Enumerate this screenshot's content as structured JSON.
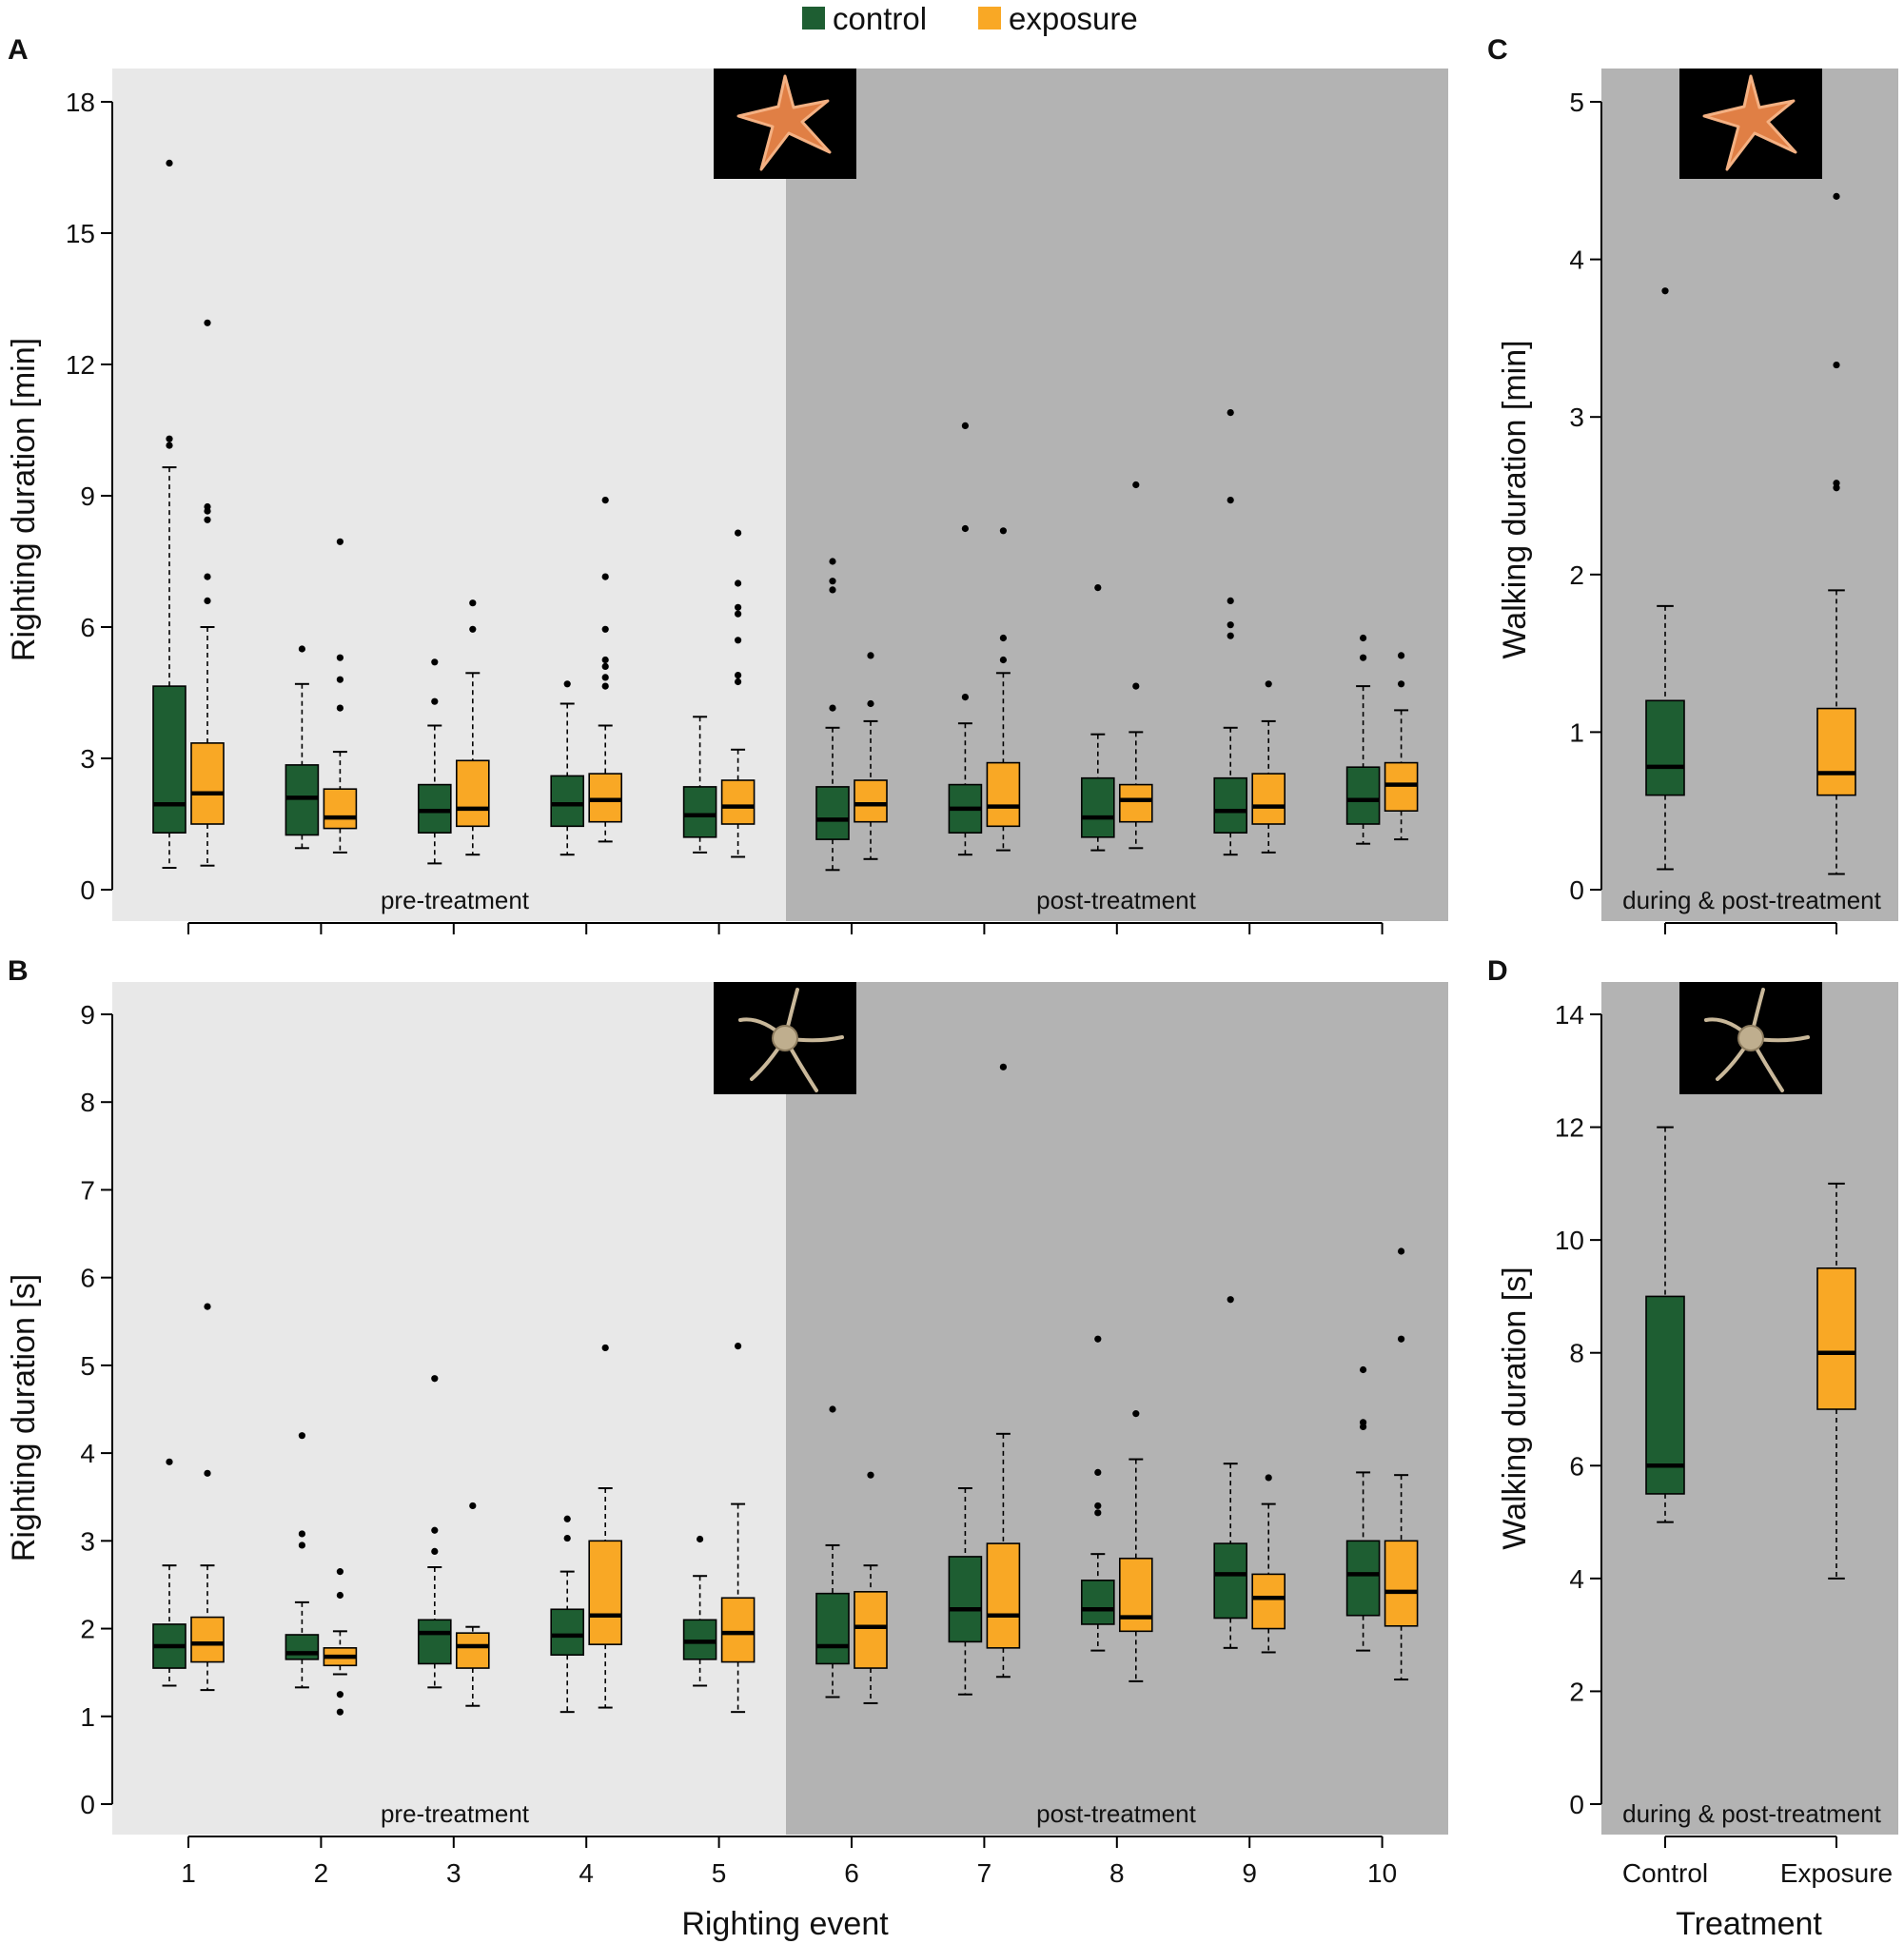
{
  "legend": {
    "items": [
      {
        "label": "control",
        "color": "#1e5e32"
      },
      {
        "label": "exposure",
        "color": "#f9a825"
      }
    ]
  },
  "colors": {
    "pre_bg": "#e8e8e8",
    "post_bg": "#b3b3b3",
    "control": "#1e5e32",
    "exposure": "#f9a825"
  },
  "icons": {
    "sea_star": "sea-star-photo-icon",
    "brittle_star": "brittle-star-photo-icon"
  },
  "chart_data": [
    {
      "panel": "A",
      "type": "boxplot",
      "ylabel": "Righting duration [min]",
      "xlabel": "",
      "ylim": [
        0,
        18
      ],
      "yticks": [
        0,
        3,
        6,
        9,
        12,
        15,
        18
      ],
      "categories": [
        "1",
        "2",
        "3",
        "4",
        "5",
        "6",
        "7",
        "8",
        "9",
        "10"
      ],
      "phases": [
        {
          "label": "pre-treatment",
          "from": 1,
          "to": 5
        },
        {
          "label": "post-treatment",
          "from": 6,
          "to": 10
        }
      ],
      "series": [
        {
          "name": "control",
          "boxes": [
            {
              "min": 0.5,
              "q1": 1.3,
              "median": 1.95,
              "q3": 4.65,
              "max": 9.65,
              "outliers": [
                10.15,
                10.3,
                16.6
              ]
            },
            {
              "min": 0.95,
              "q1": 1.25,
              "median": 2.1,
              "q3": 2.85,
              "max": 4.7,
              "outliers": [
                5.5
              ]
            },
            {
              "min": 0.6,
              "q1": 1.3,
              "median": 1.8,
              "q3": 2.4,
              "max": 3.75,
              "outliers": [
                4.3,
                5.2
              ]
            },
            {
              "min": 0.8,
              "q1": 1.45,
              "median": 1.95,
              "q3": 2.6,
              "max": 4.25,
              "outliers": [
                4.7
              ]
            },
            {
              "min": 0.85,
              "q1": 1.2,
              "median": 1.7,
              "q3": 2.35,
              "max": 3.95,
              "outliers": []
            },
            {
              "min": 0.45,
              "q1": 1.15,
              "median": 1.6,
              "q3": 2.35,
              "max": 3.7,
              "outliers": [
                4.15,
                6.85,
                7.05,
                7.5
              ]
            },
            {
              "min": 0.8,
              "q1": 1.3,
              "median": 1.85,
              "q3": 2.4,
              "max": 3.8,
              "outliers": [
                4.4,
                8.25,
                10.6
              ]
            },
            {
              "min": 0.9,
              "q1": 1.2,
              "median": 1.65,
              "q3": 2.55,
              "max": 3.55,
              "outliers": [
                6.9
              ]
            },
            {
              "min": 0.8,
              "q1": 1.3,
              "median": 1.8,
              "q3": 2.55,
              "max": 3.7,
              "outliers": [
                5.8,
                6.05,
                6.6,
                8.9,
                10.9
              ]
            },
            {
              "min": 1.05,
              "q1": 1.5,
              "median": 2.05,
              "q3": 2.8,
              "max": 4.65,
              "outliers": [
                5.3,
                5.75
              ]
            }
          ]
        },
        {
          "name": "exposure",
          "boxes": [
            {
              "min": 0.55,
              "q1": 1.5,
              "median": 2.2,
              "q3": 3.35,
              "max": 6.0,
              "outliers": [
                6.6,
                7.15,
                8.45,
                8.65,
                8.75,
                12.95
              ]
            },
            {
              "min": 0.85,
              "q1": 1.4,
              "median": 1.65,
              "q3": 2.3,
              "max": 3.15,
              "outliers": [
                4.15,
                4.8,
                5.3,
                7.95
              ]
            },
            {
              "min": 0.8,
              "q1": 1.45,
              "median": 1.85,
              "q3": 2.95,
              "max": 4.95,
              "outliers": [
                5.95,
                6.55
              ]
            },
            {
              "min": 1.1,
              "q1": 1.55,
              "median": 2.05,
              "q3": 2.65,
              "max": 3.75,
              "outliers": [
                4.65,
                4.85,
                5.1,
                5.25,
                5.95,
                7.15,
                8.9
              ]
            },
            {
              "min": 0.75,
              "q1": 1.5,
              "median": 1.9,
              "q3": 2.5,
              "max": 3.2,
              "outliers": [
                4.75,
                4.9,
                5.7,
                6.3,
                6.45,
                7.0,
                8.15
              ]
            },
            {
              "min": 0.7,
              "q1": 1.55,
              "median": 1.95,
              "q3": 2.5,
              "max": 3.85,
              "outliers": [
                4.25,
                5.35
              ]
            },
            {
              "min": 0.9,
              "q1": 1.45,
              "median": 1.9,
              "q3": 2.9,
              "max": 4.95,
              "outliers": [
                5.25,
                5.75,
                8.2
              ]
            },
            {
              "min": 0.95,
              "q1": 1.55,
              "median": 2.05,
              "q3": 2.4,
              "max": 3.6,
              "outliers": [
                4.65,
                9.25
              ]
            },
            {
              "min": 0.85,
              "q1": 1.5,
              "median": 1.9,
              "q3": 2.65,
              "max": 3.85,
              "outliers": [
                4.7
              ]
            },
            {
              "min": 1.15,
              "q1": 1.8,
              "median": 2.4,
              "q3": 2.9,
              "max": 4.1,
              "outliers": [
                4.7,
                5.35
              ]
            }
          ]
        }
      ]
    },
    {
      "panel": "B",
      "type": "boxplot",
      "ylabel": "Righting duration [s]",
      "xlabel": "Righting event",
      "ylim": [
        0,
        9
      ],
      "yticks": [
        0,
        1,
        2,
        3,
        4,
        5,
        6,
        7,
        8,
        9
      ],
      "categories": [
        "1",
        "2",
        "3",
        "4",
        "5",
        "6",
        "7",
        "8",
        "9",
        "10"
      ],
      "phases": [
        {
          "label": "pre-treatment",
          "from": 1,
          "to": 5
        },
        {
          "label": "post-treatment",
          "from": 6,
          "to": 10
        }
      ],
      "series": [
        {
          "name": "control",
          "boxes": [
            {
              "min": 1.35,
              "q1": 1.55,
              "median": 1.8,
              "q3": 2.05,
              "max": 2.72,
              "outliers": [
                3.9
              ]
            },
            {
              "min": 1.33,
              "q1": 1.65,
              "median": 1.72,
              "q3": 1.93,
              "max": 2.3,
              "outliers": [
                2.95,
                3.08,
                4.2
              ]
            },
            {
              "min": 1.33,
              "q1": 1.6,
              "median": 1.95,
              "q3": 2.1,
              "max": 2.7,
              "outliers": [
                2.88,
                3.12,
                4.85
              ]
            },
            {
              "min": 1.05,
              "q1": 1.7,
              "median": 1.92,
              "q3": 2.22,
              "max": 2.65,
              "outliers": [
                3.03,
                3.25
              ]
            },
            {
              "min": 1.35,
              "q1": 1.65,
              "median": 1.85,
              "q3": 2.1,
              "max": 2.6,
              "outliers": [
                3.02
              ]
            },
            {
              "min": 1.22,
              "q1": 1.6,
              "median": 1.8,
              "q3": 2.4,
              "max": 2.95,
              "outliers": [
                4.5
              ]
            },
            {
              "min": 1.25,
              "q1": 1.85,
              "median": 2.22,
              "q3": 2.82,
              "max": 3.6,
              "outliers": []
            },
            {
              "min": 1.75,
              "q1": 2.05,
              "median": 2.22,
              "q3": 2.55,
              "max": 2.85,
              "outliers": [
                3.32,
                3.4,
                3.78,
                5.3
              ]
            },
            {
              "min": 1.78,
              "q1": 2.12,
              "median": 2.62,
              "q3": 2.97,
              "max": 3.88,
              "outliers": [
                5.75
              ]
            },
            {
              "min": 1.75,
              "q1": 2.15,
              "median": 2.62,
              "q3": 3.0,
              "max": 3.78,
              "outliers": [
                4.3,
                4.35,
                4.95
              ]
            }
          ]
        },
        {
          "name": "exposure",
          "boxes": [
            {
              "min": 1.3,
              "q1": 1.62,
              "median": 1.83,
              "q3": 2.13,
              "max": 2.72,
              "outliers": [
                3.77,
                5.67
              ]
            },
            {
              "min": 1.48,
              "q1": 1.58,
              "median": 1.68,
              "q3": 1.78,
              "max": 1.97,
              "outliers": [
                1.05,
                1.25,
                2.38,
                2.65
              ]
            },
            {
              "min": 1.12,
              "q1": 1.55,
              "median": 1.8,
              "q3": 1.95,
              "max": 2.02,
              "outliers": [
                3.4
              ]
            },
            {
              "min": 1.1,
              "q1": 1.82,
              "median": 2.15,
              "q3": 3.0,
              "max": 3.6,
              "outliers": [
                5.2
              ]
            },
            {
              "min": 1.05,
              "q1": 1.62,
              "median": 1.95,
              "q3": 2.35,
              "max": 3.42,
              "outliers": [
                5.22
              ]
            },
            {
              "min": 1.15,
              "q1": 1.55,
              "median": 2.02,
              "q3": 2.42,
              "max": 2.72,
              "outliers": [
                3.75
              ]
            },
            {
              "min": 1.45,
              "q1": 1.78,
              "median": 2.15,
              "q3": 2.97,
              "max": 4.22,
              "outliers": [
                8.4
              ]
            },
            {
              "min": 1.4,
              "q1": 1.97,
              "median": 2.13,
              "q3": 2.8,
              "max": 3.93,
              "outliers": [
                4.45
              ]
            },
            {
              "min": 1.73,
              "q1": 2.0,
              "median": 2.35,
              "q3": 2.62,
              "max": 3.42,
              "outliers": [
                3.72
              ]
            },
            {
              "min": 1.42,
              "q1": 2.03,
              "median": 2.42,
              "q3": 3.0,
              "max": 3.75,
              "outliers": [
                5.3,
                6.3
              ]
            }
          ]
        }
      ]
    },
    {
      "panel": "C",
      "type": "boxplot",
      "ylabel": "Walking duration [min]",
      "xlabel": "",
      "ylim": [
        0,
        5
      ],
      "yticks": [
        0,
        1,
        2,
        3,
        4,
        5
      ],
      "categories": [
        "Control",
        "Exposure"
      ],
      "phase_label": "during & post-treatment",
      "boxes": [
        {
          "group": "Control",
          "color": "#1e5e32",
          "min": 0.13,
          "q1": 0.6,
          "median": 0.78,
          "q3": 1.2,
          "max": 1.8,
          "outliers": [
            3.8
          ]
        },
        {
          "group": "Exposure",
          "color": "#f9a825",
          "min": 0.1,
          "q1": 0.6,
          "median": 0.74,
          "q3": 1.15,
          "max": 1.9,
          "outliers": [
            2.55,
            2.58,
            3.33,
            4.4
          ]
        }
      ]
    },
    {
      "panel": "D",
      "type": "boxplot",
      "ylabel": "Walking duration [s]",
      "xlabel": "Treatment",
      "ylim": [
        0,
        14
      ],
      "yticks": [
        0,
        2,
        4,
        6,
        8,
        10,
        12,
        14
      ],
      "categories": [
        "Control",
        "Exposure"
      ],
      "phase_label": "during & post-treatment",
      "boxes": [
        {
          "group": "Control",
          "color": "#1e5e32",
          "min": 5.0,
          "q1": 5.5,
          "median": 6.0,
          "q3": 9.0,
          "max": 12.0,
          "outliers": []
        },
        {
          "group": "Exposure",
          "color": "#f9a825",
          "min": 4.0,
          "q1": 7.0,
          "median": 8.0,
          "q3": 9.5,
          "max": 11.0,
          "outliers": []
        }
      ]
    }
  ]
}
